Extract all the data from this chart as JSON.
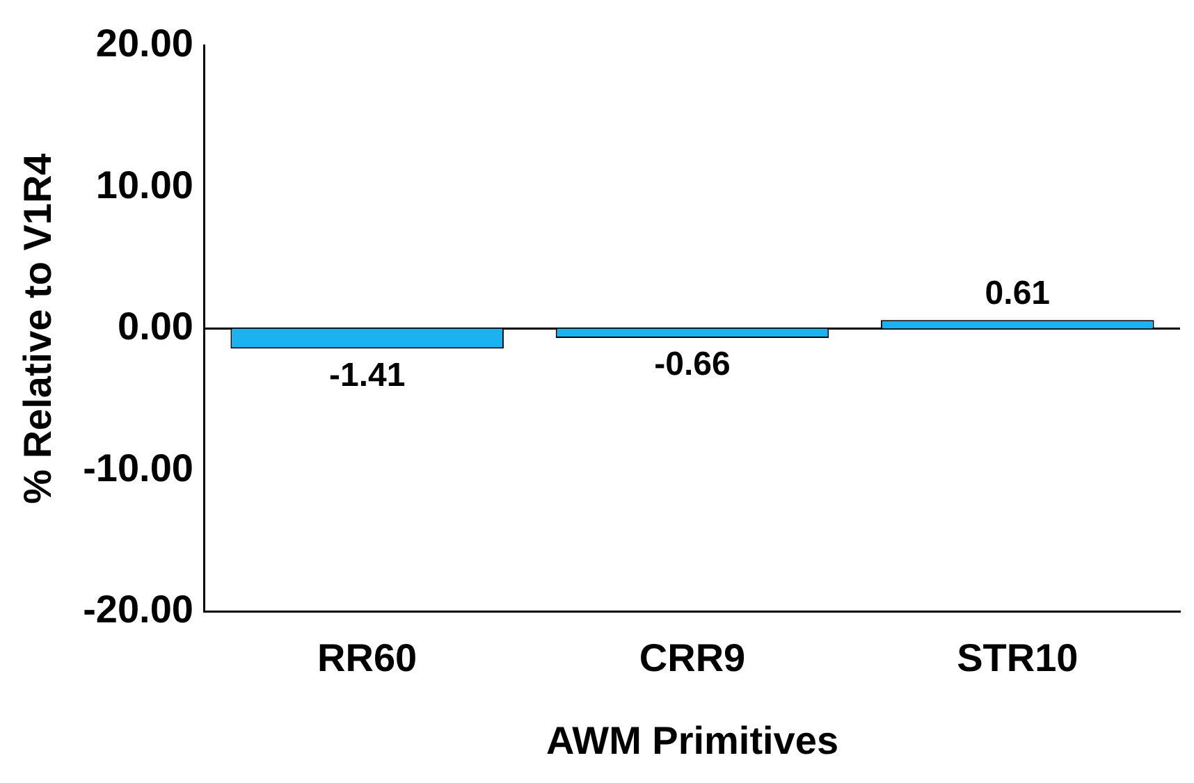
{
  "chart_data": {
    "type": "bar",
    "xlabel": "AWM Primitives",
    "ylabel": "% Relative to V1R4",
    "categories": [
      "RR60",
      "CRR9",
      "STR10"
    ],
    "values": [
      -1.41,
      -0.66,
      0.61
    ],
    "color": "#1ab2f0",
    "ylim": [
      -20,
      20
    ],
    "yticks": [
      {
        "value": -20,
        "label": "-20.00"
      },
      {
        "value": -10,
        "label": "-10.00"
      },
      {
        "value": 0,
        "label": "0.00"
      },
      {
        "value": 10,
        "label": "10.00"
      },
      {
        "value": 20,
        "label": "20.00"
      }
    ],
    "ref_lines": [
      {
        "axis": "y",
        "value": 0,
        "color": "#000000"
      }
    ],
    "grid": false,
    "legend": false,
    "data_labels": true
  }
}
